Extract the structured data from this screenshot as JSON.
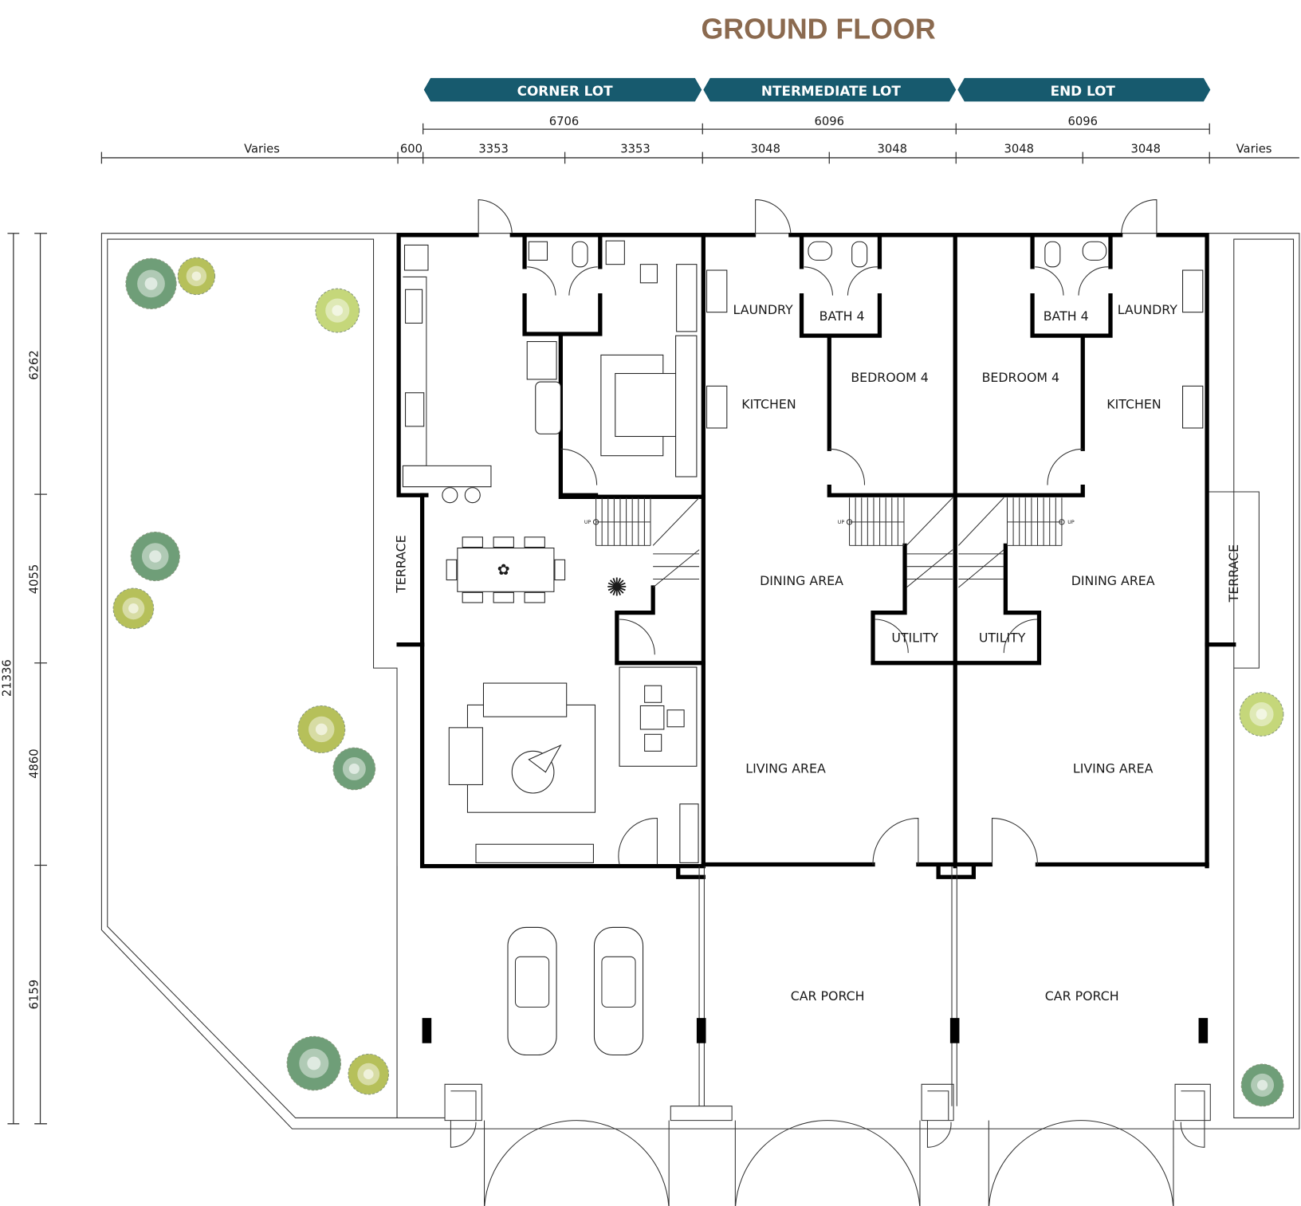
{
  "title": "GROUND FLOOR",
  "colors": {
    "title": "#8b6a4f",
    "banner": "#175a6e",
    "tree_dark": "#6f9e78",
    "tree_light": "#c5d77a",
    "tree_olive": "#b6c05a"
  },
  "lots": [
    {
      "label": "CORNER LOT",
      "width": "6706",
      "halves": [
        "3353",
        "3353"
      ]
    },
    {
      "label": "NTERMEDIATE LOT",
      "width": "6096",
      "halves": [
        "3048",
        "3048"
      ]
    },
    {
      "label": "END LOT",
      "width": "6096",
      "halves": [
        "3048",
        "3048"
      ]
    }
  ],
  "side_dims": {
    "left_varies": "Varies",
    "setback": "600",
    "right_varies": "Varies"
  },
  "vertical_dims": {
    "total": "21336",
    "segments": [
      "6262",
      "4055",
      "4860",
      "6159"
    ]
  },
  "rooms": {
    "terrace_left": "TERRACE",
    "terrace_right": "TERRACE",
    "inter": {
      "laundry": "LAUNDRY",
      "bath": "BATH 4",
      "bedroom": "BEDROOM 4",
      "kitchen": "KITCHEN",
      "dining": "DINING AREA",
      "utility": "UTILITY",
      "living": "LIVING AREA",
      "porch": "CAR PORCH"
    },
    "end": {
      "laundry": "LAUNDRY",
      "bath": "BATH 4",
      "bedroom": "BEDROOM 4",
      "kitchen": "KITCHEN",
      "dining": "DINING AREA",
      "utility": "UTILITY",
      "living": "LIVING AREA",
      "porch": "CAR PORCH"
    },
    "stair_up": "UP"
  }
}
